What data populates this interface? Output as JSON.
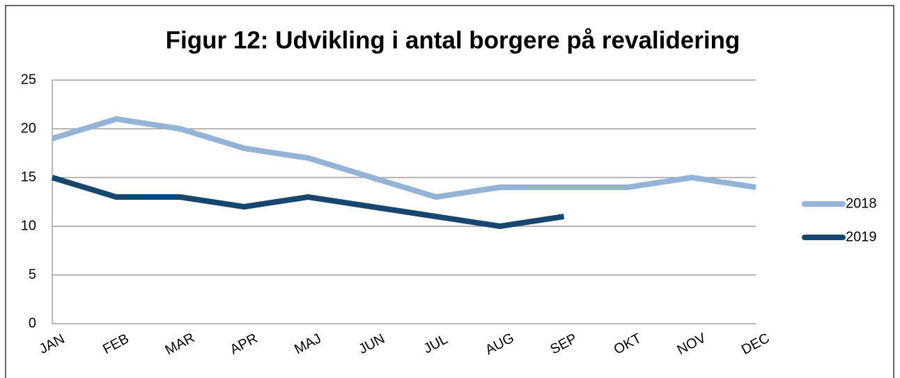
{
  "chart_data": {
    "type": "line",
    "title": "Figur 12: Udvikling i antal borgere på revalidering",
    "categories": [
      "JAN",
      "FEB",
      "MAR",
      "APR",
      "MAJ",
      "JUN",
      "JUL",
      "AUG",
      "SEP",
      "OKT",
      "NOV",
      "DEC"
    ],
    "series": [
      {
        "name": "2018",
        "color": "#95b3d7",
        "values": [
          19,
          21,
          20,
          18,
          17,
          15,
          13,
          14,
          14,
          14,
          15,
          14
        ]
      },
      {
        "name": "2019",
        "color": "#17466f",
        "values": [
          15,
          13,
          13,
          12,
          13,
          12,
          11,
          10,
          11,
          null,
          null,
          null
        ]
      }
    ],
    "ylim": [
      0,
      25
    ],
    "yticks": [
      0,
      5,
      10,
      15,
      20,
      25
    ],
    "grid": true,
    "legend": "right"
  }
}
